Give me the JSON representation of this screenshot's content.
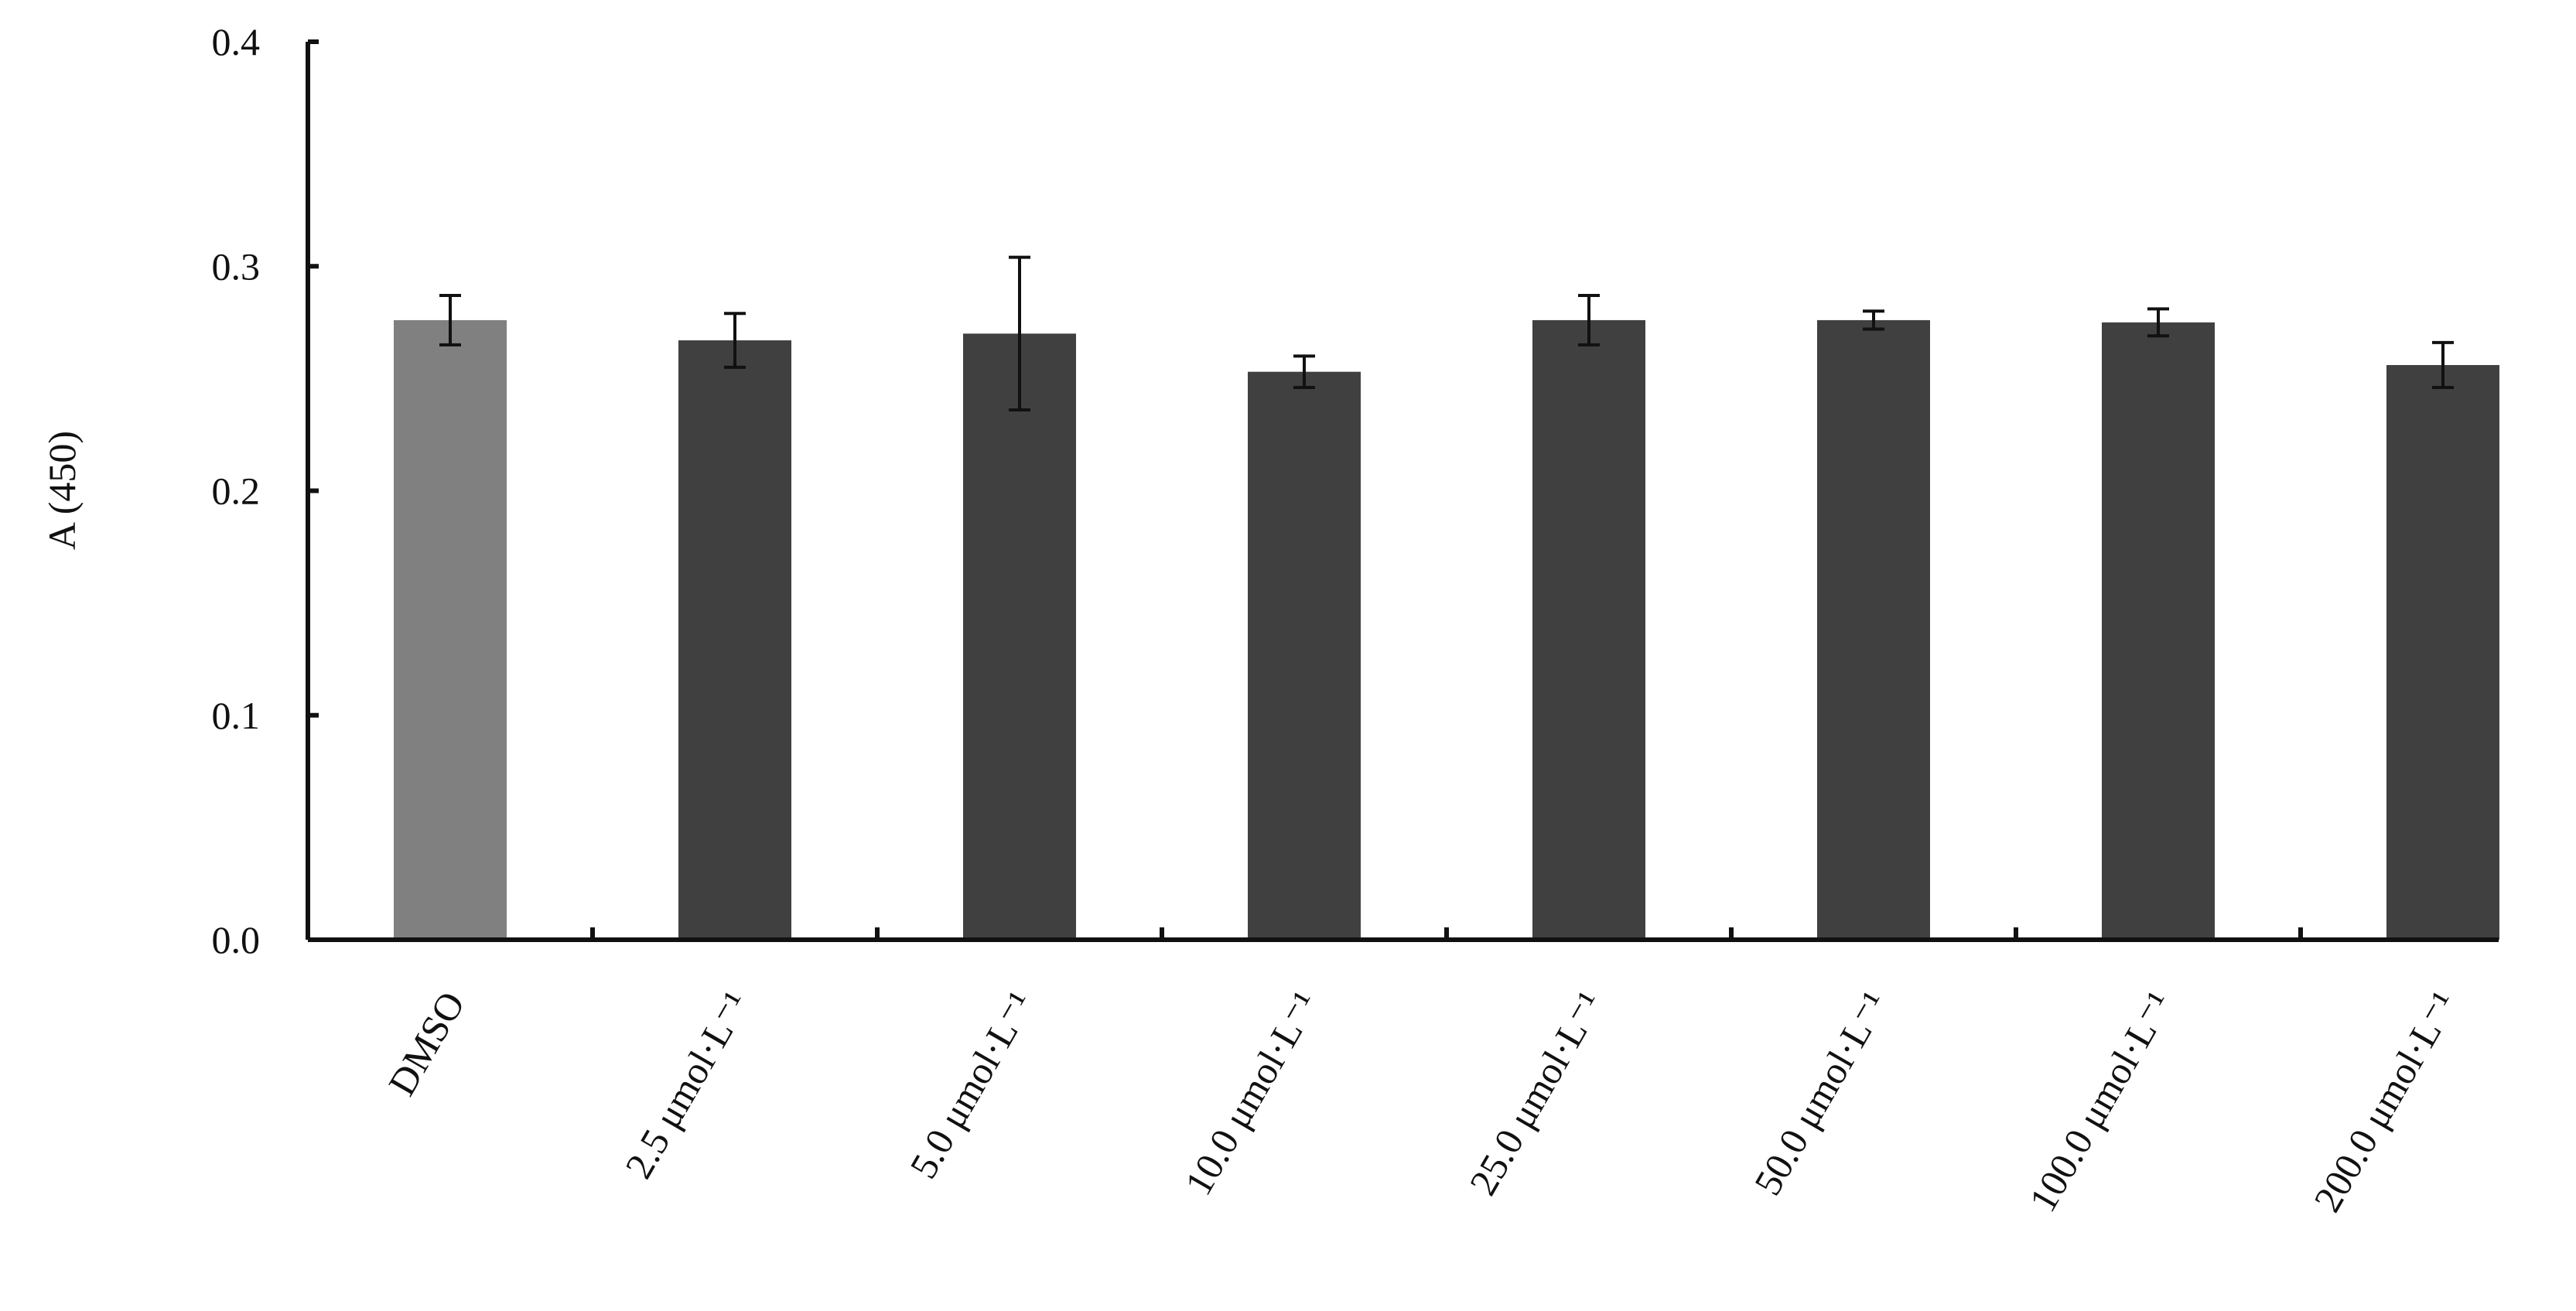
{
  "chart_data": {
    "type": "bar",
    "ylabel": "A (450)",
    "categories": [
      "DMSO",
      "2.5 μmol·L⁻¹",
      "5.0 μmol·L⁻¹",
      "10.0 μmol·L⁻¹",
      "25.0 μmol·L⁻¹",
      "50.0 μmol·L⁻¹",
      "100.0 μmol·L⁻¹",
      "200.0 μmol·L⁻¹"
    ],
    "values": [
      0.276,
      0.267,
      0.27,
      0.253,
      0.276,
      0.276,
      0.275,
      0.256
    ],
    "errors": [
      0.011,
      0.012,
      0.034,
      0.007,
      0.011,
      0.004,
      0.006,
      0.01
    ],
    "colors": [
      "#808080",
      "#404040",
      "#404040",
      "#404040",
      "#404040",
      "#404040",
      "#404040",
      "#404040"
    ],
    "ylim": [
      0,
      0.4
    ],
    "yticks": [
      {
        "value": 0,
        "label": "0.0"
      },
      0.1,
      0.2,
      0.3,
      0.4
    ],
    "grid": false
  }
}
